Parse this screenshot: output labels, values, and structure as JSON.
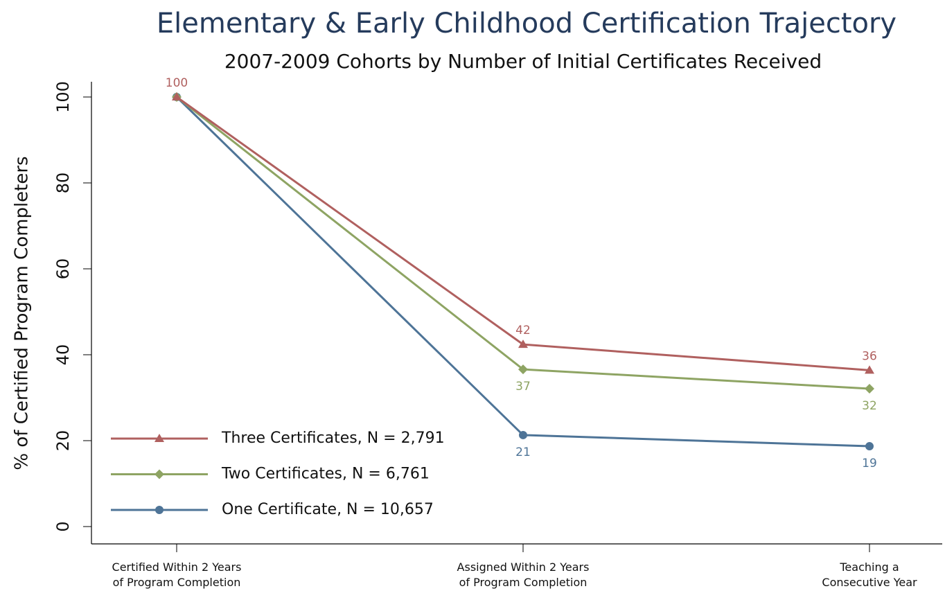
{
  "chart_data": {
    "type": "line",
    "title": "Elementary & Early Childhood Certification Trajectory",
    "subtitle": "2007-2009 Cohorts by Number of Initial Certificates Received",
    "y_label": "% of Certified Program Completers",
    "categories": [
      "Certified Within 2 Years\nof Program Completion",
      "Assigned Within 2 Years\nof Program Completion",
      "Teaching a\nConsecutive Year"
    ],
    "series": [
      {
        "name": "Three Certificates, N = 2,791",
        "color": "#b0605f",
        "marker": "triangle",
        "values": [
          100,
          42.4,
          36.4
        ],
        "value_labels": [
          "100",
          "42",
          "36"
        ]
      },
      {
        "name": "Two Certificates, N = 6,761",
        "color": "#8ea463",
        "marker": "diamond",
        "values": [
          100,
          36.6,
          32.1
        ],
        "value_labels": [
          null,
          "37",
          "32"
        ]
      },
      {
        "name": "One Certificate, N = 10,657",
        "color": "#4e7497",
        "marker": "circle",
        "values": [
          100,
          21.3,
          18.7
        ],
        "value_labels": [
          null,
          "21",
          "19"
        ]
      }
    ],
    "ylim": [
      0,
      100
    ],
    "yticks": [
      0,
      20,
      40,
      60,
      80,
      100
    ],
    "legend": "lower left",
    "grid": false
  }
}
